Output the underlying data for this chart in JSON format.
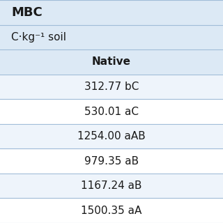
{
  "header_row1": "MBC",
  "header_row2": "C·kg⁻¹ soil",
  "col_header": "Native",
  "rows": [
    "312.77 bC",
    "530.01 aC",
    "1254.00 aAB",
    "979.35 aB",
    "1167.24 aB",
    "1500.35 aA"
  ],
  "bg_header": "#dce9f5",
  "bg_col_header": "#dce9f5",
  "bg_row_odd": "#eef4fb",
  "bg_row_even": "#ffffff",
  "line_color": "#a0bcd8",
  "text_color": "#1a1a1a",
  "font_size_header": 13,
  "font_size_col": 11,
  "font_size_data": 11
}
